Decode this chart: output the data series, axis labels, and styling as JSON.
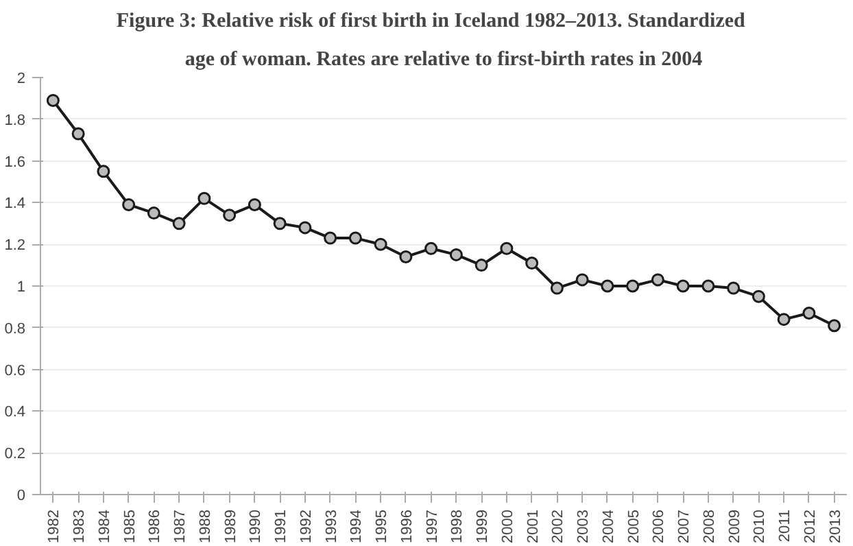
{
  "chart_data": {
    "type": "line",
    "title": "Figure 3:      Relative risk of first birth in Iceland 1982–2013. Standardized",
    "subtitle": "age of woman. Rates are relative to first-birth rates in 2004",
    "categories": [
      "1982",
      "1983",
      "1984",
      "1985",
      "1986",
      "1987",
      "1988",
      "1989",
      "1990",
      "1991",
      "1992",
      "1993",
      "1994",
      "1995",
      "1996",
      "1997",
      "1998",
      "1999",
      "2000",
      "2001",
      "2002",
      "2003",
      "2004",
      "2005",
      "2006",
      "2007",
      "2008",
      "2009",
      "2010",
      "2011",
      "2012",
      "2013"
    ],
    "series": [
      {
        "color": "#1a1a1a",
        "values": [
          1.89,
          1.73,
          1.55,
          1.39,
          1.35,
          1.3,
          1.42,
          1.34,
          1.39,
          1.3,
          1.28,
          1.23,
          1.23,
          1.2,
          1.14,
          1.18,
          1.15,
          1.1,
          1.18,
          1.11,
          0.99,
          1.03,
          1.0,
          1.0,
          1.03,
          1.0,
          1.0,
          0.99,
          0.95,
          0.84,
          0.87,
          0.81
        ]
      }
    ],
    "ylim": [
      0,
      2
    ],
    "yticks": [
      0,
      0.2,
      0.4,
      0.6,
      0.8,
      1,
      1.2,
      1.4,
      1.6,
      1.8,
      2
    ],
    "grid": "y",
    "marker": "circle",
    "line_style": "solid"
  }
}
